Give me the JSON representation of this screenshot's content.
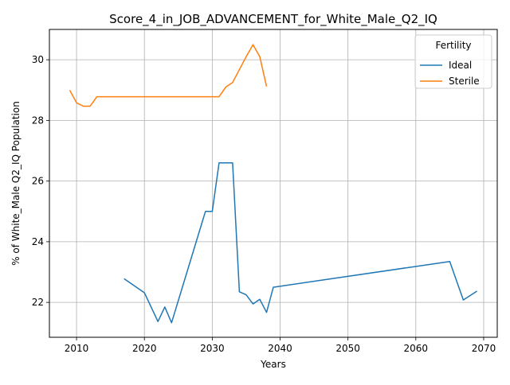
{
  "chart_data": {
    "type": "line",
    "title": "Score_4_in_JOB_ADVANCEMENT_for_White_Male_Q2_IQ",
    "xlabel": "Years",
    "ylabel": "% of White_Male Q2_IQ Population",
    "xlim": [
      2006,
      2072
    ],
    "ylim": [
      20.85,
      31.0
    ],
    "x_ticks": [
      2010,
      2020,
      2030,
      2040,
      2050,
      2060,
      2070
    ],
    "y_ticks": [
      22,
      24,
      26,
      28,
      30
    ],
    "grid": true,
    "legend": {
      "title": "Fertility",
      "placement": "top-right"
    },
    "series": [
      {
        "name": "Ideal",
        "color": "#1f77b4",
        "points": [
          [
            2017,
            22.78
          ],
          [
            2020,
            22.32
          ],
          [
            2022,
            21.37
          ],
          [
            2023,
            21.85
          ],
          [
            2024,
            21.33
          ],
          [
            2029,
            25.0
          ],
          [
            2030,
            25.0
          ],
          [
            2031,
            26.6
          ],
          [
            2033,
            26.6
          ],
          [
            2034,
            22.35
          ],
          [
            2035,
            22.25
          ],
          [
            2036,
            21.95
          ],
          [
            2037,
            22.1
          ],
          [
            2038,
            21.67
          ],
          [
            2039,
            22.5
          ],
          [
            2065,
            23.35
          ],
          [
            2067,
            22.08
          ],
          [
            2069,
            22.37
          ]
        ]
      },
      {
        "name": "Sterile",
        "color": "#ff7f0e",
        "points": [
          [
            2009,
            29.0
          ],
          [
            2010,
            28.58
          ],
          [
            2011,
            28.47
          ],
          [
            2012,
            28.47
          ],
          [
            2013,
            28.78
          ],
          [
            2031,
            28.78
          ],
          [
            2032,
            29.1
          ],
          [
            2033,
            29.25
          ],
          [
            2035,
            30.1
          ],
          [
            2036,
            30.5
          ],
          [
            2037,
            30.1
          ],
          [
            2038,
            29.12
          ]
        ]
      }
    ]
  }
}
